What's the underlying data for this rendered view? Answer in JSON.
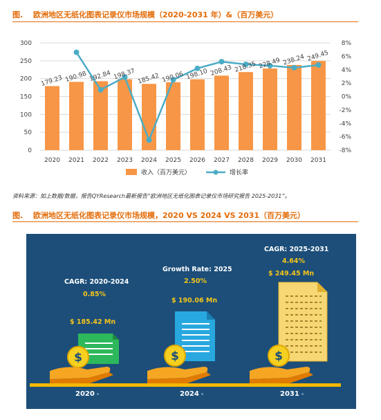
{
  "figure1": {
    "label": "图.",
    "title": "欧洲地区无纸化图表记录仪市场规模（2020-2031 年）&（百万美元）"
  },
  "chart_data": {
    "type": "bar",
    "categories": [
      "2020",
      "2021",
      "2022",
      "2023",
      "2024",
      "2025",
      "2026",
      "2027",
      "2028",
      "2029",
      "2030",
      "2031"
    ],
    "series": [
      {
        "name": "收入（百万美元）",
        "type": "bar",
        "axis": "left",
        "color": "#f79646",
        "values": [
          179.23,
          190.98,
          192.84,
          198.37,
          185.42,
          190.06,
          198.1,
          208.43,
          218.35,
          228.49,
          238.24,
          249.45
        ]
      },
      {
        "name": "增长率",
        "type": "line",
        "axis": "right",
        "color": "#4bacc6",
        "values": [
          null,
          6.6,
          1.0,
          2.9,
          -6.5,
          2.5,
          4.2,
          5.2,
          4.8,
          4.6,
          4.3,
          4.7
        ]
      }
    ],
    "bar_labels": [
      "179.23",
      "190.98",
      "192.84",
      "198.37",
      "185.42",
      "190.06",
      "198.10",
      "208.43",
      "218.35",
      "228.49",
      "238.24",
      "249.45"
    ],
    "ylim": [
      0,
      300
    ],
    "yticks": [
      "0",
      "50",
      "100",
      "150",
      "200",
      "250",
      "300"
    ],
    "y2lim": [
      -8,
      8
    ],
    "y2ticks": [
      "8%",
      "6%",
      "4%",
      "2%",
      "0%",
      "-2%",
      "-4%",
      "-6%",
      "-8%"
    ],
    "grid": true,
    "legend_position": "bottom"
  },
  "source_text": "资料来源：如上数据/数据，报告QYResearch最新报告“欧洲地区无纸化图表记录仪市场研究报告 2025-2031”。",
  "figure2": {
    "label": "图.",
    "title": "欧洲地区无纸化图表记录仪市场规模，2020 VS 2024 VS 2031（百万美元）"
  },
  "panel": {
    "left_label": "CAGR: 2020-2024",
    "left_rate": "0.85%",
    "left_value": "$ 185.42 Mn",
    "mid_label": "Growth Rate: 2025",
    "mid_rate": "2.50%",
    "mid_value": "$ 190.06 Mn",
    "right_label": "CAGR: 2025-2031",
    "right_rate": "4.64%",
    "right_value": "$ 249.45 Mn",
    "year_left": "2020",
    "year_mid": "2024",
    "year_right": "2031"
  },
  "colors": {
    "accent": "#e36c09",
    "panel_bg": "#1c4e79",
    "gold": "#f5c51a",
    "doc_green": "#2eb85c",
    "doc_blue": "#29a8e0",
    "doc_yellow": "#f7d774"
  }
}
